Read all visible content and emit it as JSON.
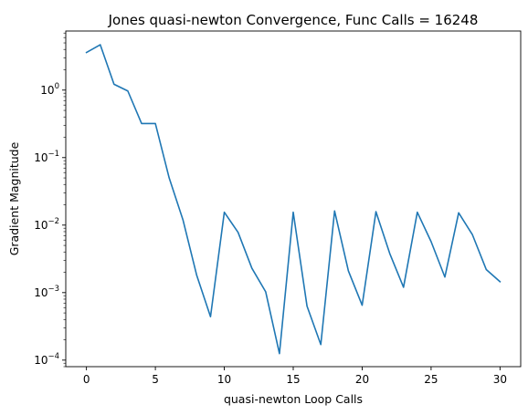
{
  "chart_data": {
    "type": "line",
    "title": "Jones quasi-newton Convergence, Func Calls = 16248",
    "xlabel": "quasi-newton Loop Calls",
    "ylabel": "Gradient Magnitude",
    "yscale": "log",
    "xlim": [
      -1.5,
      31.5
    ],
    "ylim": [
      8e-05,
      7.5
    ],
    "x_ticks": [
      0,
      5,
      10,
      15,
      20,
      25,
      30
    ],
    "x_tick_labels": [
      "0",
      "5",
      "10",
      "15",
      "20",
      "25",
      "30"
    ],
    "y_ticks": [
      0.0001,
      0.001,
      0.01,
      0.1,
      1
    ],
    "y_tick_labels": [
      {
        "base": "10",
        "exp": "−4"
      },
      {
        "base": "10",
        "exp": "−3"
      },
      {
        "base": "10",
        "exp": "−2"
      },
      {
        "base": "10",
        "exp": "−1"
      },
      {
        "base": "10",
        "exp": "0"
      }
    ],
    "grid": false,
    "color": "#1f77b4",
    "x": [
      0,
      1,
      2,
      3,
      4,
      5,
      6,
      7,
      8,
      9,
      10,
      11,
      12,
      13,
      14,
      15,
      16,
      17,
      18,
      19,
      20,
      21,
      22,
      23,
      24,
      25,
      26,
      27,
      28,
      29,
      30
    ],
    "y": [
      3.6,
      4.7,
      1.22,
      0.97,
      0.32,
      0.32,
      0.05,
      0.012,
      0.0018,
      0.00044,
      0.0155,
      0.0078,
      0.0023,
      0.00103,
      0.000125,
      0.0155,
      0.00063,
      0.00017,
      0.0162,
      0.0021,
      0.00065,
      0.0158,
      0.0038,
      0.0012,
      0.0155,
      0.0057,
      0.0017,
      0.0152,
      0.0072,
      0.0022,
      0.00145
    ]
  }
}
